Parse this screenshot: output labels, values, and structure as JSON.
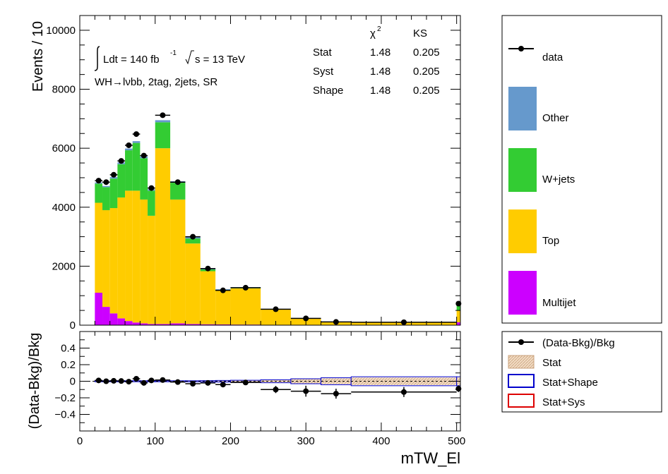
{
  "chart_data": [
    {
      "type": "bar",
      "stacked": true,
      "ylabel": "Events / 10",
      "ylim": [
        0,
        10500
      ],
      "xlim": [
        0,
        505
      ],
      "y_ticks": [
        "0",
        "2000",
        "4000",
        "6000",
        "8000",
        "10000"
      ],
      "annotations": {
        "lumi_label": "Ldt = 140 fb",
        "lumi_exp": "-1",
        "energy_label": "s = 13 TeV",
        "region_label": "WH→lνbb, 2tag, 2jets, SR"
      },
      "stats_table": {
        "headers": [
          "χ",
          "KS"
        ],
        "chi_exp": "2",
        "rows": [
          {
            "label": "Stat",
            "chi2": "1.48",
            "ks": "0.205"
          },
          {
            "label": "Syst",
            "chi2": "1.48",
            "ks": "0.205"
          },
          {
            "label": "Shape",
            "chi2": "1.48",
            "ks": "0.205"
          }
        ]
      },
      "bins": [
        [
          20,
          30
        ],
        [
          30,
          40
        ],
        [
          40,
          50
        ],
        [
          50,
          60
        ],
        [
          60,
          70
        ],
        [
          70,
          80
        ],
        [
          80,
          90
        ],
        [
          90,
          100
        ],
        [
          100,
          120
        ],
        [
          120,
          140
        ],
        [
          140,
          160
        ],
        [
          160,
          180
        ],
        [
          180,
          200
        ],
        [
          200,
          240
        ],
        [
          240,
          280
        ],
        [
          280,
          320
        ],
        [
          320,
          360
        ],
        [
          360,
          500
        ],
        [
          500,
          505
        ]
      ],
      "series": [
        {
          "name": "Multijet",
          "color": "#cc00ff",
          "values": [
            1100,
            620,
            400,
            230,
            140,
            90,
            60,
            40,
            40,
            60,
            40,
            30,
            25,
            20,
            10,
            10,
            5,
            5,
            100
          ]
        },
        {
          "name": "Top",
          "color": "#ffcc00",
          "values": [
            3050,
            3280,
            3570,
            4100,
            4420,
            4470,
            4200,
            3670,
            5960,
            4200,
            2730,
            1800,
            1150,
            1230,
            520,
            210,
            100,
            90,
            400
          ]
        },
        {
          "name": "W+jets",
          "color": "#33cc33",
          "values": [
            650,
            780,
            1000,
            1130,
            1370,
            1620,
            1400,
            850,
            880,
            570,
            170,
            60,
            25,
            20,
            5,
            5,
            3,
            3,
            200
          ]
        },
        {
          "name": "Other",
          "color": "#6699cc",
          "values": [
            40,
            40,
            50,
            60,
            60,
            60,
            60,
            50,
            70,
            50,
            50,
            30,
            20,
            20,
            10,
            5,
            5,
            5,
            10
          ]
        }
      ],
      "data_points": {
        "name": "data",
        "x": [
          25,
          35,
          45,
          55,
          65,
          75,
          85,
          95,
          110,
          130,
          150,
          170,
          190,
          220,
          260,
          300,
          340,
          430,
          502.5
        ],
        "y": [
          4900,
          4850,
          5100,
          5570,
          6100,
          6480,
          5750,
          4650,
          7120,
          4850,
          3000,
          1920,
          1180,
          1270,
          540,
          230,
          110,
          100,
          730
        ]
      },
      "legend": {
        "placement": "right",
        "entries": [
          {
            "label": "data",
            "kind": "marker",
            "color": "#000000"
          },
          {
            "label": "Other",
            "kind": "box",
            "color": "#6699cc"
          },
          {
            "label": "W+jets",
            "kind": "box",
            "color": "#33cc33"
          },
          {
            "label": "Top",
            "kind": "box",
            "color": "#ffcc00"
          },
          {
            "label": "Multijet",
            "kind": "box",
            "color": "#cc00ff"
          }
        ]
      }
    },
    {
      "type": "scatter",
      "ylabel": "(Data-Bkg)/Bkg",
      "xlabel": "mTW_El",
      "ylim": [
        -0.6,
        0.6
      ],
      "xlim": [
        0,
        505
      ],
      "x_ticks": [
        "0",
        "100",
        "200",
        "300",
        "400",
        "500"
      ],
      "y_ticks": [
        "−0.4",
        "−0.2",
        "0",
        "0.2",
        "0.4"
      ],
      "points": {
        "x": [
          25,
          35,
          45,
          55,
          65,
          75,
          85,
          95,
          110,
          130,
          150,
          170,
          190,
          220,
          260,
          300,
          340,
          430,
          502.5
        ],
        "y": [
          0.01,
          0.0,
          0.005,
          0.003,
          -0.005,
          0.03,
          -0.02,
          0.01,
          0.015,
          -0.01,
          -0.03,
          -0.02,
          -0.04,
          -0.015,
          -0.1,
          -0.12,
          -0.15,
          -0.13,
          -0.09
        ],
        "err": [
          0.015,
          0.015,
          0.014,
          0.013,
          0.013,
          0.012,
          0.013,
          0.015,
          0.012,
          0.015,
          0.018,
          0.023,
          0.029,
          0.028,
          0.043,
          0.066,
          0.06,
          0.06,
          0.04
        ]
      },
      "bands": {
        "stat_halfwidth": [
          0.005,
          0.005,
          0.005,
          0.005,
          0.005,
          0.005,
          0.005,
          0.005,
          0.005,
          0.005,
          0.005,
          0.006,
          0.008,
          0.01,
          0.015,
          0.025,
          0.035,
          0.045,
          0.045
        ]
      },
      "legend": {
        "placement": "right",
        "entries": [
          {
            "label": "(Data-Bkg)/Bkg",
            "kind": "marker",
            "color": "#000000"
          },
          {
            "label": "Stat",
            "kind": "hatch",
            "color": "#e8c8a8"
          },
          {
            "label": "Stat+Shape",
            "kind": "outline",
            "color": "#0000cc"
          },
          {
            "label": "Stat+Sys",
            "kind": "outline",
            "color": "#dd0000"
          }
        ]
      }
    }
  ]
}
